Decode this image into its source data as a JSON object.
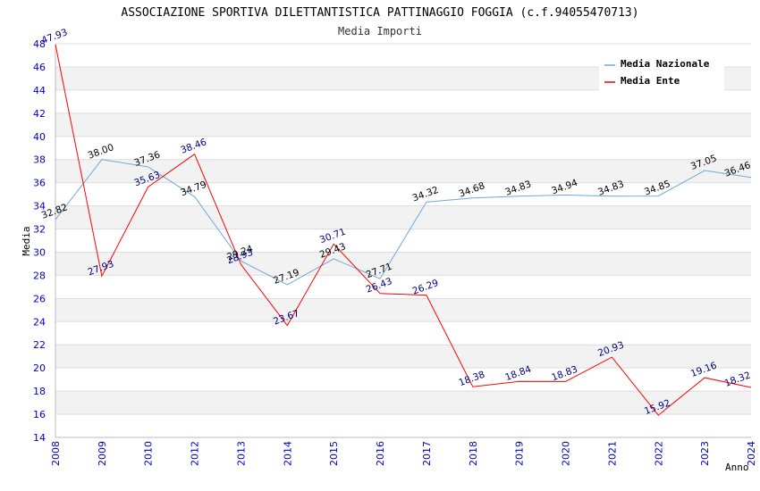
{
  "chart_data": {
    "type": "line",
    "title": "ASSOCIAZIONE SPORTIVA DILETTANTISTICA PATTINAGGIO FOGGIA (c.f.94055470713)",
    "subtitle": "Media Importi",
    "xlabel": "Anno",
    "ylabel": "Media",
    "ylim": [
      14,
      48
    ],
    "y_ticks": [
      "14",
      "16",
      "18",
      "20",
      "22",
      "24",
      "26",
      "28",
      "30",
      "32",
      "34",
      "36",
      "38",
      "40",
      "42",
      "44",
      "46",
      "48"
    ],
    "categories": [
      "2008",
      "2009",
      "2010",
      "2012",
      "2013",
      "2014",
      "2015",
      "2016",
      "2017",
      "2018",
      "2019",
      "2020",
      "2021",
      "2022",
      "2023",
      "2024"
    ],
    "grid": true,
    "legend_position": "top-right",
    "series": [
      {
        "name": "Media Nazionale",
        "color": "#6fa8dc",
        "values": [
          32.82,
          38.0,
          37.36,
          34.79,
          29.24,
          27.19,
          29.43,
          27.71,
          34.32,
          34.68,
          34.83,
          34.94,
          34.83,
          34.85,
          37.05,
          36.46
        ],
        "labels": [
          "32.82",
          "38.00",
          "37.36",
          "34.79",
          "29.24",
          "27.19",
          "29.43",
          "27.71",
          "34.32",
          "34.68",
          "34.83",
          "34.94",
          "34.83",
          "34.85",
          "37.05",
          "36.46"
        ]
      },
      {
        "name": "Media Ente",
        "color": "#ff0000",
        "values": [
          47.93,
          27.93,
          35.63,
          38.46,
          28.93,
          23.67,
          30.71,
          26.43,
          26.29,
          18.38,
          18.84,
          18.83,
          20.93,
          15.92,
          19.16,
          18.32
        ],
        "labels": [
          "47.93",
          "27.93",
          "35.63",
          "38.46",
          "28.93",
          "23.67",
          "30.71",
          "26.43",
          "26.29",
          "18.38",
          "18.84",
          "18.83",
          "20.93",
          "15.92",
          "19.16",
          "18.32"
        ]
      }
    ]
  }
}
